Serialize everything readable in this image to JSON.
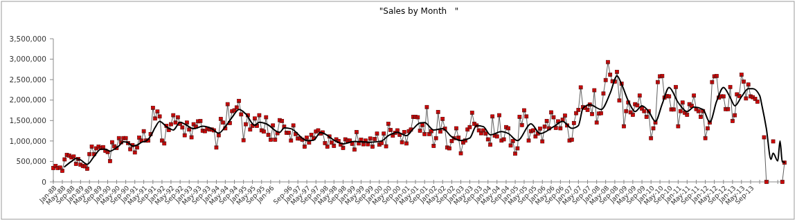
{
  "chart_data": {
    "type": "line",
    "title": "\"Sales by Month   \"",
    "x": [
      "1988-01",
      "1988-02",
      "1988-03",
      "1988-04",
      "1988-05",
      "1988-06",
      "1988-07",
      "1988-08",
      "1988-09",
      "1988-10",
      "1988-11",
      "1988-12",
      "1989-01",
      "1989-02",
      "1989-03",
      "1989-04",
      "1989-05",
      "1989-06",
      "1989-07",
      "1989-08",
      "1989-09",
      "1989-10",
      "1989-11",
      "1989-12",
      "1990-01",
      "1990-02",
      "1990-03",
      "1990-04",
      "1990-05",
      "1990-06",
      "1990-07",
      "1990-08",
      "1990-09",
      "1990-10",
      "1990-11",
      "1990-12",
      "1991-01",
      "1991-02",
      "1991-03",
      "1991-04",
      "1991-05",
      "1991-06",
      "1991-07",
      "1991-08",
      "1991-09",
      "1991-10",
      "1991-11",
      "1991-12",
      "1992-01",
      "1992-02",
      "1992-03",
      "1992-04",
      "1992-05",
      "1992-06",
      "1992-07",
      "1992-08",
      "1992-09",
      "1992-10",
      "1992-11",
      "1992-12",
      "1993-01",
      "1993-02",
      "1993-03",
      "1993-04",
      "1993-05",
      "1993-06",
      "1993-07",
      "1993-08",
      "1993-09",
      "1993-10",
      "1993-11",
      "1993-12",
      "1994-01",
      "1994-02",
      "1994-03",
      "1994-04",
      "1994-05",
      "1994-06",
      "1994-07",
      "1994-08",
      "1994-09",
      "1994-10",
      "1994-11",
      "1994-12",
      "1995-01",
      "1995-02",
      "1995-03",
      "1995-04",
      "1995-05",
      "1995-06",
      "1995-07",
      "1995-08",
      "1995-09",
      "1995-10",
      "1995-11",
      "1995-12",
      "1996-01",
      "1996-02",
      "1996-03",
      "1996-04",
      "1996-05",
      "1996-06",
      "1996-07",
      "1996-08",
      "1996-09",
      "1996-10",
      "1996-11",
      "1996-12",
      "1997-01",
      "1997-02",
      "1997-03",
      "1997-04",
      "1997-05",
      "1997-06",
      "1997-07",
      "1997-08",
      "1997-09",
      "1997-10",
      "1997-11",
      "1997-12",
      "1998-01",
      "1998-02",
      "1998-03",
      "1998-04",
      "1998-05",
      "1998-06",
      "1998-07",
      "1998-08",
      "1998-09",
      "1998-10",
      "1998-11",
      "1998-12",
      "1999-01",
      "1999-02",
      "1999-03",
      "1999-04",
      "1999-05",
      "1999-06",
      "1999-07",
      "1999-08",
      "1999-09",
      "1999-10",
      "1999-11",
      "1999-12",
      "2000-01",
      "2000-02",
      "2000-03",
      "2000-04",
      "2000-05",
      "2000-06",
      "2000-07",
      "2000-08",
      "2000-09",
      "2000-10",
      "2000-11",
      "2000-12",
      "2001-01",
      "2001-02",
      "2001-03",
      "2001-04",
      "2001-05",
      "2001-06",
      "2001-07",
      "2001-08",
      "2001-09",
      "2001-10",
      "2001-11",
      "2001-12",
      "2002-01",
      "2002-02",
      "2002-03",
      "2002-04",
      "2002-05",
      "2002-06",
      "2002-07",
      "2002-08",
      "2002-09",
      "2002-10",
      "2002-11",
      "2002-12",
      "2003-01",
      "2003-02",
      "2003-03",
      "2003-04",
      "2003-05",
      "2003-06",
      "2003-07",
      "2003-08",
      "2003-09",
      "2003-10",
      "2003-11",
      "2003-12",
      "2004-01",
      "2004-02",
      "2004-03",
      "2004-04",
      "2004-05",
      "2004-06",
      "2004-07",
      "2004-08",
      "2004-09",
      "2004-10",
      "2004-11",
      "2004-12",
      "2005-01",
      "2005-02",
      "2005-03",
      "2005-04",
      "2005-05",
      "2005-06",
      "2005-07",
      "2005-08",
      "2005-09",
      "2005-10",
      "2005-11",
      "2005-12",
      "2006-01",
      "2006-02",
      "2006-03",
      "2006-04",
      "2006-05",
      "2006-06",
      "2006-07",
      "2006-08",
      "2006-09",
      "2006-10",
      "2006-11",
      "2006-12",
      "2007-01",
      "2007-02",
      "2007-03",
      "2007-04",
      "2007-05",
      "2007-06",
      "2007-07",
      "2007-08",
      "2007-09",
      "2007-10",
      "2007-11",
      "2007-12",
      "2008-01",
      "2008-02",
      "2008-03",
      "2008-04",
      "2008-05",
      "2008-06",
      "2008-07",
      "2008-08",
      "2008-09",
      "2008-10",
      "2008-11",
      "2008-12",
      "2009-01",
      "2009-02",
      "2009-03",
      "2009-04",
      "2009-05",
      "2009-06",
      "2009-07",
      "2009-08",
      "2009-09",
      "2009-10",
      "2009-11",
      "2009-12",
      "2010-01",
      "2010-02",
      "2010-03",
      "2010-04",
      "2010-05",
      "2010-06",
      "2010-07",
      "2010-08",
      "2010-09",
      "2010-10",
      "2010-11",
      "2010-12",
      "2011-01",
      "2011-02",
      "2011-03",
      "2011-04",
      "2011-05",
      "2011-06",
      "2011-07",
      "2011-08",
      "2011-09",
      "2011-10",
      "2011-11",
      "2011-12",
      "2012-01",
      "2012-02",
      "2012-03",
      "2012-04",
      "2012-05",
      "2012-06",
      "2012-07",
      "2012-08",
      "2012-09",
      "2012-10",
      "2012-11",
      "2012-12",
      "2013-01",
      "2013-02",
      "2013-03",
      "2013-04",
      "2013-05",
      "2013-06",
      "2013-07",
      "2013-08",
      "2013-09",
      "2013-10",
      "2013-11",
      "2013-12",
      "2014-01",
      "2014-02",
      "2014-03",
      "2014-04",
      "2014-05",
      "2014-06",
      "2014-07",
      "2014-08",
      "2014-09",
      "2014-10",
      "2014-11",
      "2014-12"
    ],
    "series": [
      {
        "marker": "square",
        "color": "#e00000",
        "values": [
          340000,
          390000,
          340000,
          350000,
          270000,
          550000,
          660000,
          640000,
          600000,
          620000,
          440000,
          560000,
          420000,
          390000,
          380000,
          320000,
          680000,
          860000,
          680000,
          820000,
          860000,
          830000,
          850000,
          760000,
          730000,
          510000,
          970000,
          870000,
          830000,
          1070000,
          970000,
          1070000,
          1070000,
          950000,
          800000,
          900000,
          720000,
          840000,
          1080000,
          1010000,
          1240000,
          1010000,
          1010000,
          1170000,
          1810000,
          1550000,
          1720000,
          1600000,
          1010000,
          940000,
          1370000,
          1270000,
          1410000,
          1630000,
          1450000,
          1580000,
          1420000,
          1330000,
          1140000,
          1450000,
          1280000,
          1090000,
          1410000,
          1350000,
          1480000,
          1490000,
          1250000,
          1240000,
          1300000,
          1280000,
          1280000,
          1260000,
          840000,
          1140000,
          1540000,
          1450000,
          1310000,
          1900000,
          1440000,
          1730000,
          1750000,
          1820000,
          1980000,
          1650000,
          1020000,
          1410000,
          1630000,
          1280000,
          1370000,
          1550000,
          1370000,
          1630000,
          1260000,
          1230000,
          1580000,
          1150000,
          1030000,
          1380000,
          1030000,
          1190000,
          1510000,
          1490000,
          1350000,
          1200000,
          1200000,
          1010000,
          1380000,
          1170000,
          1060000,
          1060000,
          1030000,
          860000,
          1080000,
          960000,
          1150000,
          1070000,
          1230000,
          1260000,
          1180000,
          1210000,
          950000,
          860000,
          1110000,
          960000,
          880000,
          1040000,
          1000000,
          910000,
          830000,
          1040000,
          1010000,
          1010000,
          930000,
          790000,
          1220000,
          940000,
          1030000,
          920000,
          1010000,
          920000,
          1060000,
          860000,
          1050000,
          1180000,
          910000,
          950000,
          1180000,
          870000,
          1420000,
          1270000,
          1130000,
          1200000,
          1260000,
          1150000,
          970000,
          1220000,
          940000,
          1240000,
          1280000,
          1590000,
          1590000,
          1580000,
          1250000,
          1390000,
          1170000,
          1830000,
          1170000,
          1240000,
          880000,
          1070000,
          1710000,
          1230000,
          1540000,
          1300000,
          840000,
          820000,
          1000000,
          1070000,
          1310000,
          1080000,
          700000,
          960000,
          1010000,
          1280000,
          1340000,
          1690000,
          1420000,
          1380000,
          1260000,
          1190000,
          1260000,
          1180000,
          1040000,
          910000,
          1600000,
          1130000,
          1110000,
          1630000,
          1010000,
          1040000,
          1340000,
          1310000,
          890000,
          1000000,
          690000,
          820000,
          1590000,
          1390000,
          1750000,
          1600000,
          1010000,
          1240000,
          1260000,
          1110000,
          1180000,
          1300000,
          990000,
          1350000,
          1490000,
          1310000,
          1700000,
          1580000,
          1320000,
          1480000,
          1310000,
          1520000,
          1620000,
          1380000,
          1010000,
          1030000,
          1440000,
          1680000,
          1760000,
          2310000,
          1830000,
          1810000,
          1760000,
          1890000,
          1660000,
          2240000,
          1450000,
          1670000,
          1680000,
          2160000,
          2490000,
          2930000,
          2620000,
          2460000,
          2450000,
          2690000,
          1990000,
          2400000,
          1360000,
          1730000,
          1940000,
          1700000,
          1640000,
          1900000,
          1870000,
          2110000,
          1790000,
          1730000,
          1590000,
          1730000,
          1070000,
          1310000,
          1450000,
          2440000,
          2580000,
          2590000,
          2060000,
          2100000,
          2090000,
          1770000,
          1770000,
          2320000,
          1360000,
          1730000,
          1940000,
          1690000,
          1640000,
          1900000,
          1860000,
          2110000,
          1780000,
          1730000,
          1590000,
          1730000,
          1070000,
          1310000,
          1450000,
          2440000,
          2580000,
          2590000,
          2060000,
          2090000,
          2090000,
          1780000,
          1780000,
          2320000,
          1490000,
          1630000,
          2140000,
          2100000,
          2620000,
          2450000,
          2040000,
          2380000,
          2090000,
          2070000,
          2030000,
          1960000,
          null,
          null,
          1090000,
          0,
          null,
          null,
          990000,
          null,
          null,
          null,
          0,
          470000
        ]
      },
      {
        "marker": "none",
        "color": "#000000",
        "x": [
          "1988-06",
          "1988-09",
          "1988-11",
          "1989-01",
          "1989-04",
          "1989-07",
          "1989-10",
          "1989-12",
          "1990-02",
          "1990-04",
          "1990-06",
          "1990-08",
          "1990-10",
          "1990-12",
          "1991-02",
          "1991-04",
          "1991-06",
          "1991-08",
          "1991-10",
          "1991-12",
          "1992-03",
          "1992-06",
          "1992-09",
          "1992-12",
          "1993-03",
          "1993-07",
          "1993-11",
          "1994-02",
          "1994-05",
          "1994-08",
          "1994-11",
          "1995-02",
          "1995-06",
          "1995-08",
          "1995-11",
          "1996-05",
          "1996-07",
          "1996-10",
          "1997-05",
          "1997-08",
          "1997-11",
          "1998-06",
          "1998-09",
          "1999-02",
          "1999-09",
          "2000-02",
          "2000-05",
          "2000-09",
          "2001-01",
          "2001-04",
          "2001-07",
          "2001-09",
          "2002-01",
          "2002-05",
          "2002-09",
          "2003-01",
          "2003-05",
          "2003-08",
          "2003-11",
          "2004-02",
          "2004-07",
          "2004-10",
          "2005-02",
          "2005-08",
          "2005-12",
          "2006-06",
          "2006-10",
          "2007-02",
          "2007-05",
          "2007-07",
          "2007-10",
          "2008-03",
          "2008-07",
          "2008-10",
          "2008-12",
          "2009-03",
          "2009-06",
          "2009-09",
          "2009-12",
          "2010-03",
          "2010-06",
          "2010-09",
          "2011-01",
          "2011-05",
          "2011-08",
          "2011-12",
          "2012-03",
          "2012-06",
          "2012-09",
          "2012-12",
          "2013-02",
          "2013-05",
          "2013-08",
          "2013-10",
          "2014-01",
          "2014-02",
          "2014-04",
          "2014-06",
          "2014-07",
          "2014-09",
          "2014-10",
          "2014-11",
          "2014-12"
        ],
        "values": [
          370000,
          500000,
          570000,
          540000,
          430000,
          620000,
          800000,
          800000,
          750000,
          800000,
          880000,
          980000,
          960000,
          880000,
          900000,
          970000,
          1000000,
          1120000,
          1330000,
          1480000,
          1350000,
          1270000,
          1460000,
          1380000,
          1300000,
          1360000,
          1300000,
          1190000,
          1350000,
          1580000,
          1770000,
          1660000,
          1380000,
          1460000,
          1420000,
          1210000,
          1320000,
          1300000,
          1010000,
          1020000,
          1210000,
          990000,
          930000,
          990000,
          970000,
          1000000,
          1130000,
          1210000,
          1130000,
          1300000,
          1440000,
          1450000,
          1270000,
          1300000,
          1100000,
          1010000,
          1070000,
          1380000,
          1350000,
          1150000,
          1230000,
          1180000,
          1010000,
          1420000,
          1180000,
          1350000,
          1480000,
          1310000,
          1380000,
          1800000,
          1890000,
          1770000,
          2170000,
          2590000,
          2390000,
          1980000,
          1720000,
          1860000,
          1720000,
          1480000,
          1910000,
          2310000,
          1940000,
          1720000,
          1830000,
          1770000,
          1460000,
          1970000,
          2310000,
          2060000,
          1860000,
          2080000,
          2280000,
          2280000,
          2110000,
          1860000,
          1300000,
          550000,
          700000,
          510000,
          1000000,
          490000,
          480000
        ]
      }
    ],
    "xlim": [
      "1988-01",
      "2014-12"
    ],
    "xticks": [
      {
        "value": "1988-01",
        "label": "Jan-88"
      },
      {
        "value": "1988-05",
        "label": "May-88"
      },
      {
        "value": "1988-09",
        "label": "Sep-88"
      },
      {
        "value": "1989-01",
        "label": "Jan-89"
      },
      {
        "value": "1989-05",
        "label": "May-89"
      },
      {
        "value": "1989-09",
        "label": "Sep-89"
      },
      {
        "value": "1990-01",
        "label": "Jan-90"
      },
      {
        "value": "1990-05",
        "label": "May-90"
      },
      {
        "value": "1990-09",
        "label": "Sep-90"
      },
      {
        "value": "1991-01",
        "label": "Jan-91"
      },
      {
        "value": "1991-05",
        "label": "May-91"
      },
      {
        "value": "1991-09",
        "label": "Sep-91"
      },
      {
        "value": "1992-01",
        "label": "Jan-92"
      },
      {
        "value": "1992-05",
        "label": "May-92"
      },
      {
        "value": "1992-09",
        "label": "Sep-92"
      },
      {
        "value": "1993-01",
        "label": "Jan-93"
      },
      {
        "value": "1993-05",
        "label": "May-93"
      },
      {
        "value": "1993-09",
        "label": "Sep-93"
      },
      {
        "value": "1994-01",
        "label": "Jan-94"
      },
      {
        "value": "1994-05",
        "label": "May-94"
      },
      {
        "value": "1994-09",
        "label": "Sep-94"
      },
      {
        "value": "1995-01",
        "label": "Jan-95"
      },
      {
        "value": "1995-05",
        "label": "May-95"
      },
      {
        "value": "1995-09",
        "label": "Sep-95"
      },
      {
        "value": "1996-01",
        "label": "Jan-96"
      },
      {
        "value": "1996-05",
        "label": null
      },
      {
        "value": "1996-09",
        "label": "Sep-96"
      },
      {
        "value": "1997-01",
        "label": "Jan-97"
      },
      {
        "value": "1997-05",
        "label": "May-97"
      },
      {
        "value": "1997-09",
        "label": "Sep-97"
      },
      {
        "value": "1998-01",
        "label": "Jan-98"
      },
      {
        "value": "1998-05",
        "label": "May-98"
      },
      {
        "value": "1998-09",
        "label": "Sep-98"
      },
      {
        "value": "1999-01",
        "label": "Jan-99"
      },
      {
        "value": "1999-05",
        "label": "May-99"
      },
      {
        "value": "1999-09",
        "label": "Sep-99"
      },
      {
        "value": "2000-01",
        "label": "Jan-00"
      },
      {
        "value": "2000-05",
        "label": "May-00"
      },
      {
        "value": "2000-09",
        "label": "Sep-00"
      },
      {
        "value": "2001-01",
        "label": "Jan-01"
      },
      {
        "value": "2001-05",
        "label": "May-01"
      },
      {
        "value": "2001-09",
        "label": "Sep-01"
      },
      {
        "value": "2002-01",
        "label": "Jan-02"
      },
      {
        "value": "2002-05",
        "label": "May-02"
      },
      {
        "value": "2002-09",
        "label": "Sep-02"
      },
      {
        "value": "2003-01",
        "label": "Jan-03"
      },
      {
        "value": "2003-05",
        "label": "May-03"
      },
      {
        "value": "2003-09",
        "label": "Sep-03"
      },
      {
        "value": "2004-01",
        "label": "Jan-04"
      },
      {
        "value": "2004-05",
        "label": "May-04"
      },
      {
        "value": "2004-09",
        "label": "Sep-04"
      },
      {
        "value": "2005-01",
        "label": "Jan-05"
      },
      {
        "value": "2005-05",
        "label": "May-05"
      },
      {
        "value": "2005-09",
        "label": "Sep-05"
      },
      {
        "value": "2006-01",
        "label": "Jan-06"
      },
      {
        "value": "2006-05",
        "label": "May-06"
      },
      {
        "value": "2006-09",
        "label": "Sep-06"
      },
      {
        "value": "2007-01",
        "label": "Jan-07"
      },
      {
        "value": "2007-05",
        "label": "May-07"
      },
      {
        "value": "2007-09",
        "label": "Sep-07"
      },
      {
        "value": "2008-01",
        "label": "Jan-08"
      },
      {
        "value": "2008-05",
        "label": "May-08"
      },
      {
        "value": "2008-09",
        "label": "Sep-08"
      },
      {
        "value": "2009-01",
        "label": "Jan-09"
      },
      {
        "value": "2009-05",
        "label": "May-09"
      },
      {
        "value": "2009-09",
        "label": "Sep-09"
      },
      {
        "value": "2010-01",
        "label": "Jan-10"
      },
      {
        "value": "2010-05",
        "label": "May-10"
      },
      {
        "value": "2010-09",
        "label": "Sep-10"
      },
      {
        "value": "2011-01",
        "label": "Jan-11"
      },
      {
        "value": "2011-05",
        "label": "May-11"
      },
      {
        "value": "2011-09",
        "label": "Sep-11"
      },
      {
        "value": "2012-01",
        "label": "Jan-12"
      },
      {
        "value": "2012-05",
        "label": "May-12"
      },
      {
        "value": "2012-09",
        "label": "Sep-12"
      },
      {
        "value": "2013-01",
        "label": "Jan-13"
      },
      {
        "value": "2013-05",
        "label": "May-13"
      },
      {
        "value": "2013-09",
        "label": "Sep-13"
      },
      {
        "value": "2014-01",
        "label": null
      },
      {
        "value": "2014-05",
        "label": null
      },
      {
        "value": "2014-09",
        "label": null
      }
    ],
    "ylim": [
      0,
      3500000
    ],
    "yticks": [
      0,
      {
        "value": 500000,
        "label": "500,000"
      },
      {
        "value": 1000000,
        "label": "1,000,000"
      },
      {
        "value": 1500000,
        "label": "1,500,000"
      },
      {
        "value": 2000000,
        "label": "2,000,000"
      },
      {
        "value": 2500000,
        "label": "2,500,000"
      },
      {
        "value": 3000000,
        "label": "3,000,000"
      },
      {
        "value": 3500000,
        "label": "3,500,000"
      }
    ]
  }
}
